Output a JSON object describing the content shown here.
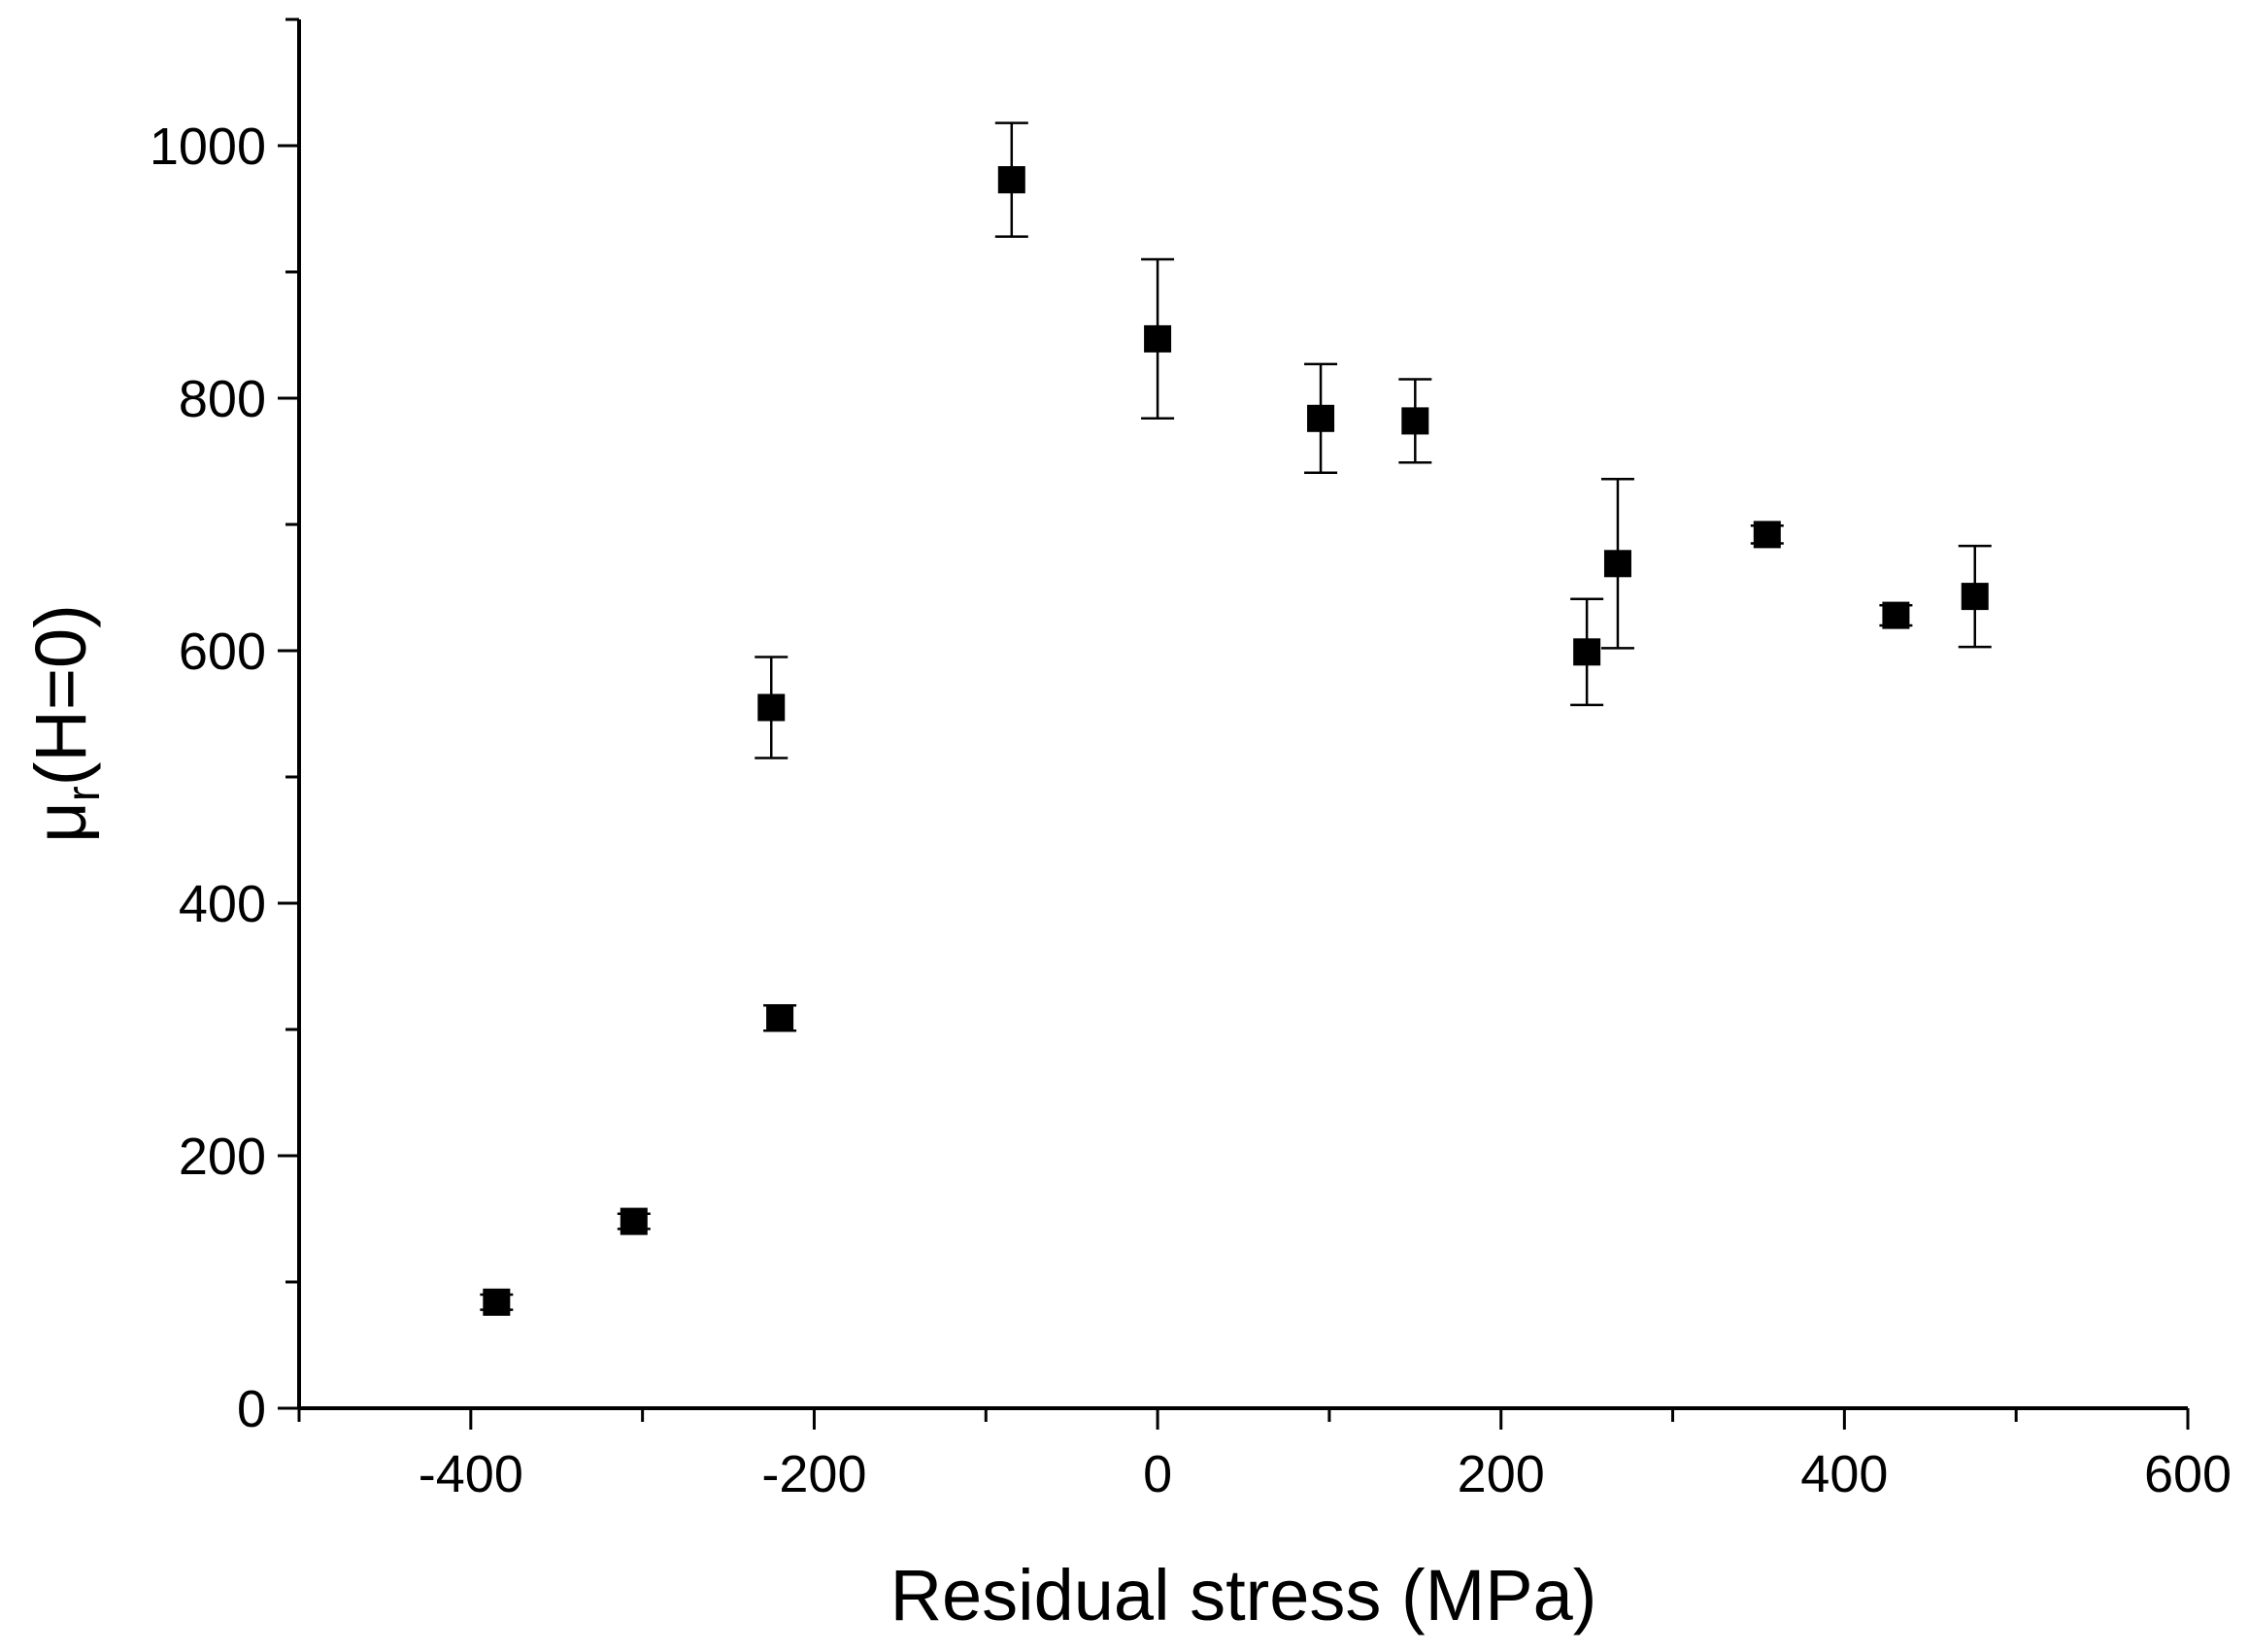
{
  "chart_data": {
    "type": "scatter",
    "title": "",
    "xlabel": "Residual stress (MPa)",
    "ylabel": {
      "base": "μ",
      "subscript": "r",
      "suffix": "(H=0)"
    },
    "xlim": [
      -500,
      600
    ],
    "ylim": [
      0,
      1100
    ],
    "x_ticks": [
      -400,
      -200,
      0,
      200,
      400,
      600
    ],
    "x_tick_labels": [
      "-400",
      "-200",
      "0",
      "200",
      "400",
      "600"
    ],
    "y_ticks": [
      0,
      200,
      400,
      600,
      800,
      1000
    ],
    "y_tick_labels": [
      "0",
      "200",
      "400",
      "600",
      "800",
      "1000"
    ],
    "x_minor_step": 100,
    "y_minor_step": 100,
    "grid": false,
    "legend": "none",
    "marker": "square",
    "marker_color": "#000000",
    "series": [
      {
        "name": "μr(H=0)",
        "points": [
          {
            "x": -385,
            "y": 84,
            "err": 6
          },
          {
            "x": -305,
            "y": 148,
            "err": 6
          },
          {
            "x": -225,
            "y": 555,
            "err": 40
          },
          {
            "x": -220,
            "y": 309,
            "err": 10
          },
          {
            "x": -85,
            "y": 973,
            "err": 45
          },
          {
            "x": 0,
            "y": 847,
            "err": 63
          },
          {
            "x": 95,
            "y": 784,
            "err": 43
          },
          {
            "x": 150,
            "y": 782,
            "err": 33
          },
          {
            "x": 250,
            "y": 599,
            "err": 42
          },
          {
            "x": 268,
            "y": 669,
            "err": 67
          },
          {
            "x": 355,
            "y": 692,
            "err": 7
          },
          {
            "x": 430,
            "y": 628,
            "err": 8
          },
          {
            "x": 476,
            "y": 643,
            "err": 40
          }
        ]
      }
    ]
  }
}
